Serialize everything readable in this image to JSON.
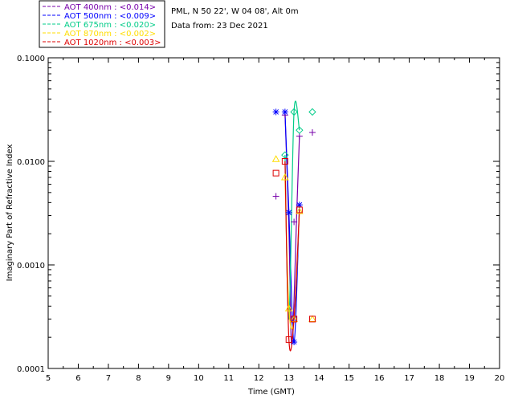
{
  "header": {
    "site_line": "PML, N 50 22', W 04 08', Alt 0m",
    "date_line": "Data from: 23 Dec 2021"
  },
  "chart_data": {
    "type": "line",
    "xlabel": "Time (GMT)",
    "ylabel": "Imaginary Part of Refractive Index",
    "xlim": [
      5,
      20
    ],
    "ylim": [
      0.0001,
      0.1
    ],
    "y_scale": "log",
    "grid": false,
    "legend_position": "top-left",
    "x_ticks": [
      "5",
      "6",
      "7",
      "8",
      "9",
      "10",
      "11",
      "12",
      "13",
      "14",
      "15",
      "16",
      "17",
      "18",
      "19",
      "20"
    ],
    "y_ticks": [
      "0.0001",
      "0.0010",
      "0.0100",
      "0.1000"
    ],
    "series": [
      {
        "name": "AOT  400nm : <0.014>",
        "color": "#7700aa",
        "marker": "plus",
        "points": [
          [
            12.57,
            0.0046
          ],
          [
            12.87,
            0.028
          ],
          [
            13.17,
            0.0026
          ],
          [
            13.35,
            0.0175
          ],
          [
            13.78,
            0.019
          ]
        ],
        "line": [
          [
            12.87,
            0.029
          ],
          [
            13.0,
            0.0022
          ],
          [
            13.08,
            0.00018
          ],
          [
            13.17,
            0.00045
          ],
          [
            13.25,
            0.0026
          ],
          [
            13.35,
            0.0175
          ]
        ]
      },
      {
        "name": "AOT  500nm : <0.009>",
        "color": "#0000ff",
        "marker": "asterisk",
        "points": [
          [
            12.57,
            0.03
          ],
          [
            12.87,
            0.03
          ],
          [
            13.0,
            0.0032
          ],
          [
            13.17,
            0.00018
          ],
          [
            13.35,
            0.0038
          ]
        ],
        "line": [
          [
            12.87,
            0.03
          ],
          [
            13.0,
            0.0032
          ],
          [
            13.17,
            0.00018
          ],
          [
            13.35,
            0.0038
          ]
        ]
      },
      {
        "name": "AOT  675nm : <0.020>",
        "color": "#00cc88",
        "marker": "diamond",
        "points": [
          [
            12.87,
            0.0115
          ],
          [
            13.17,
            0.03
          ],
          [
            13.35,
            0.02
          ],
          [
            13.78,
            0.03
          ]
        ],
        "line": [
          [
            12.87,
            0.0115
          ],
          [
            13.0,
            0.0003
          ],
          [
            13.17,
            0.03
          ],
          [
            13.35,
            0.02
          ]
        ]
      },
      {
        "name": "AOT  870nm : <0.002>",
        "color": "#ffdd00",
        "marker": "triangle",
        "points": [
          [
            12.57,
            0.0105
          ],
          [
            12.87,
            0.007
          ],
          [
            13.0,
            0.00038
          ],
          [
            13.17,
            0.0003
          ],
          [
            13.35,
            0.0033
          ],
          [
            13.78,
            0.0003
          ]
        ],
        "line": [
          [
            12.87,
            0.007
          ],
          [
            13.0,
            0.00038
          ],
          [
            13.17,
            0.0003
          ],
          [
            13.35,
            0.0033
          ]
        ]
      },
      {
        "name": "AOT 1020nm : <0.003>",
        "color": "#dd0000",
        "marker": "square",
        "points": [
          [
            12.57,
            0.0077
          ],
          [
            12.87,
            0.01
          ],
          [
            13.0,
            0.00019
          ],
          [
            13.17,
            0.0003
          ],
          [
            13.35,
            0.0034
          ],
          [
            13.78,
            0.0003
          ]
        ],
        "line": [
          [
            12.87,
            0.01
          ],
          [
            13.0,
            0.00019
          ],
          [
            13.17,
            0.0003
          ],
          [
            13.35,
            0.0034
          ]
        ]
      }
    ]
  }
}
